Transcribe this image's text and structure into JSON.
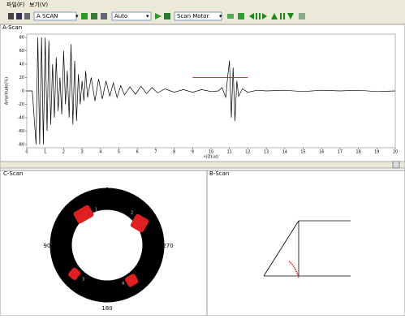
{
  "menu": [
    "파일(F)",
    "보기(V)"
  ],
  "toolbar": {
    "mode": "A SCAN",
    "gain": "Auto",
    "motor": "Scan Motor"
  },
  "a_scan": {
    "type": "line",
    "title": "A-Scan",
    "y_label": "Amplitude(%)",
    "x_label": "시간(us)",
    "xlim": [
      0,
      20
    ],
    "ylim": [
      -85,
      85
    ],
    "xticks": [
      0,
      1,
      2,
      3,
      4,
      5,
      6,
      7,
      8,
      9,
      10,
      11,
      12,
      13,
      14,
      15,
      16,
      17,
      18,
      19,
      20
    ],
    "yticks": [
      80,
      60,
      40,
      20,
      0,
      -20,
      -40,
      -60,
      -80
    ],
    "x": [
      0,
      0.3,
      0.5,
      0.6,
      0.7,
      0.8,
      0.9,
      1.0,
      1.1,
      1.2,
      1.3,
      1.4,
      1.5,
      1.6,
      1.7,
      1.8,
      1.9,
      2.0,
      2.1,
      2.2,
      2.3,
      2.4,
      2.5,
      2.6,
      2.7,
      2.8,
      2.9,
      3.0,
      3.1,
      3.2,
      3.3,
      3.5,
      3.7,
      3.9,
      4.1,
      4.3,
      4.5,
      4.7,
      4.9,
      5.1,
      5.3,
      5.6,
      5.9,
      6.2,
      6.5,
      6.8,
      7.1,
      7.5,
      8,
      8.5,
      9,
      9.5,
      10,
      10.4,
      10.6,
      10.8,
      10.9,
      11.0,
      11.1,
      11.2,
      11.3,
      11.4,
      11.5,
      11.7,
      12,
      12.5,
      13,
      14,
      15,
      16,
      17,
      18,
      19,
      20
    ],
    "y": [
      0,
      0,
      -80,
      80,
      -80,
      80,
      -80,
      80,
      -60,
      75,
      -50,
      40,
      -40,
      50,
      -30,
      20,
      -35,
      60,
      -20,
      30,
      -40,
      70,
      -50,
      45,
      -45,
      25,
      -20,
      15,
      -15,
      30,
      -10,
      20,
      -15,
      18,
      -12,
      15,
      -8,
      12,
      -10,
      8,
      -6,
      6,
      -5,
      7,
      -4,
      5,
      -3,
      3,
      -2,
      2,
      -2,
      2,
      -1,
      0,
      5,
      -10,
      20,
      45,
      -40,
      35,
      -45,
      15,
      -8,
      3,
      -2,
      1,
      0,
      1,
      -1,
      1,
      0,
      1,
      -1,
      0
    ],
    "color": "#000000",
    "gate": {
      "start": 9,
      "end": 12,
      "level": 20,
      "color": "#e03030"
    }
  },
  "c_scan": {
    "title": "C-Scan",
    "angle_labels": [
      "0",
      "90",
      "180",
      "270"
    ],
    "defect_labels": [
      "1",
      "2",
      "3",
      "4"
    ]
  },
  "b_scan": {
    "title": "B-Scan"
  }
}
